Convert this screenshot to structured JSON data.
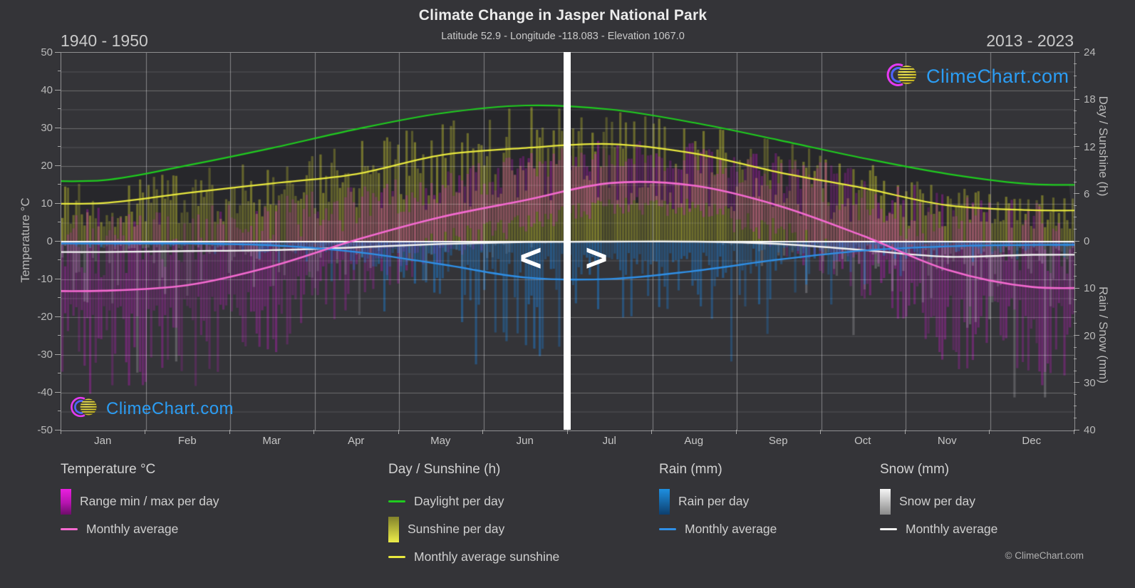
{
  "title": "Climate Change in Jasper National Park",
  "subtitle": "Latitude 52.9 - Longitude -118.083 - Elevation 1067.0",
  "era_left": "1940 - 1950",
  "era_right": "2013 - 2023",
  "nav": {
    "prev": "<",
    "next": ">"
  },
  "brand": {
    "name": "ClimeChart.com",
    "color": "#2b9df4"
  },
  "footer": "© ClimeChart.com",
  "months": [
    "Jan",
    "Feb",
    "Mar",
    "Apr",
    "May",
    "Jun",
    "Jul",
    "Aug",
    "Sep",
    "Oct",
    "Nov",
    "Dec"
  ],
  "axes": {
    "temp": {
      "title": "Temperature °C",
      "min": -50,
      "max": 50,
      "major_ticks": [
        50,
        40,
        30,
        20,
        10,
        0,
        -10,
        -20,
        -30,
        -40,
        -50
      ],
      "minor_step": 5
    },
    "sun": {
      "title": "Day / Sunshine (h)",
      "min": 0,
      "max": 24,
      "major_ticks": [
        24,
        18,
        12,
        6
      ],
      "minor_step": 1.5
    },
    "precip": {
      "title": "Rain / Snow (mm)",
      "min": 0,
      "max": 40,
      "major_ticks": [
        0,
        10,
        20,
        30,
        40
      ],
      "minor_step": 2.5,
      "direction": "down"
    }
  },
  "legend": {
    "groups": [
      {
        "title": "Temperature °C",
        "items": [
          {
            "marker": "swatch-magenta",
            "label": "Range min / max per day"
          },
          {
            "marker": "line-pink",
            "label": "Monthly average"
          }
        ]
      },
      {
        "title": "Day / Sunshine (h)",
        "items": [
          {
            "marker": "line-green",
            "label": "Daylight per day"
          },
          {
            "marker": "swatch-yellow",
            "label": "Sunshine per day"
          },
          {
            "marker": "line-yellow",
            "label": "Monthly average sunshine"
          }
        ]
      },
      {
        "title": "Rain (mm)",
        "items": [
          {
            "marker": "swatch-blue",
            "label": "Rain per day"
          },
          {
            "marker": "line-blue",
            "label": "Monthly average"
          }
        ]
      },
      {
        "title": "Snow (mm)",
        "items": [
          {
            "marker": "swatch-snow",
            "label": "Snow per day"
          },
          {
            "marker": "line-white",
            "label": "Monthly average"
          }
        ]
      }
    ]
  },
  "chart_data": {
    "type": "composite-climate",
    "title": "Climate Change in Jasper National Park",
    "categories": [
      "Jan",
      "Feb",
      "Mar",
      "Apr",
      "May",
      "Jun",
      "Jul",
      "Aug",
      "Sep",
      "Oct",
      "Nov",
      "Dec"
    ],
    "eras": {
      "left_period": "1940 - 1950",
      "right_period": "2013 - 2023",
      "split_after_month": "Jun"
    },
    "axis_ranges": {
      "temp_c": [
        -50,
        50
      ],
      "day_sun_h": [
        0,
        24
      ],
      "rain_snow_mm_down": [
        0,
        40
      ]
    },
    "series": {
      "daylight_h_per_day": [
        7.8,
        9.7,
        11.9,
        14.3,
        16.3,
        17.3,
        16.8,
        15.1,
        12.9,
        10.6,
        8.6,
        7.3
      ],
      "sunshine_monthly_avg_h": [
        4.9,
        6.2,
        7.4,
        8.6,
        11.0,
        11.9,
        12.4,
        11.2,
        8.8,
        6.8,
        4.6,
        4.0
      ],
      "temp_monthly_avg_c": [
        -13.0,
        -11.5,
        -6.5,
        0.5,
        6.5,
        11.0,
        15.5,
        14.8,
        9.5,
        1.5,
        -7.5,
        -12.0
      ],
      "rain_monthly_avg_mm": [
        0.4,
        0.4,
        0.8,
        2.2,
        4.8,
        7.6,
        7.9,
        6.2,
        3.8,
        1.9,
        1.0,
        0.7
      ],
      "snow_monthly_avg_mm": [
        2.2,
        2.0,
        1.8,
        1.2,
        0.5,
        0.1,
        0.0,
        0.0,
        0.5,
        1.8,
        3.2,
        2.8
      ]
    },
    "daily_model": {
      "temp_spread_below": [
        24,
        24,
        20,
        14,
        9,
        6,
        5,
        5,
        9,
        15,
        22,
        24
      ],
      "temp_amp_above": [
        19,
        17,
        15,
        11,
        9,
        9,
        9,
        9,
        11,
        14,
        17,
        19
      ]
    },
    "colors": {
      "background": "#343438",
      "daylight_band": "#27272b",
      "daylight_line": "#1fcb1f",
      "sunshine_bar": "rgba(216,216,48,0.45)",
      "sunshine_avg_line": "#e9e93e",
      "temp_range_bar": "rgba(224,22,224,0.33)",
      "temp_avg_line": "#f46ad0",
      "rain_bar": "rgba(30,120,200,0.55)",
      "rain_avg_line": "#2f8fe6",
      "snow_bar": "rgba(200,200,205,0.30)",
      "snow_avg_line": "#f2f2f2",
      "zero_line": "#ffffff",
      "grid": "rgba(255,255,255,0.22)"
    }
  }
}
